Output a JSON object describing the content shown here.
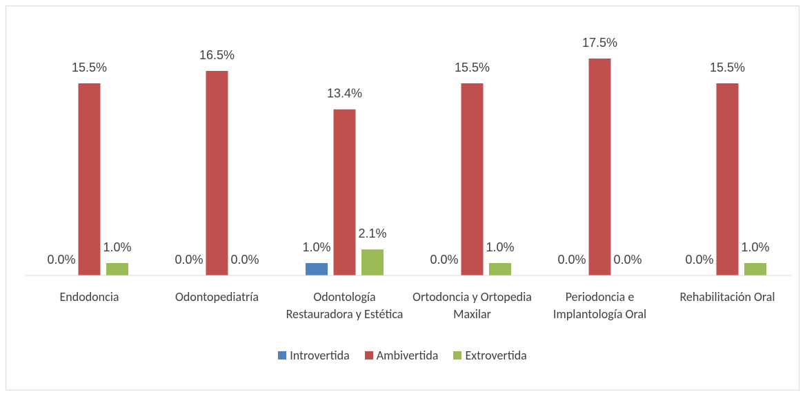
{
  "chart_data": {
    "type": "bar",
    "categories": [
      "Endodoncia",
      "Odontopediatría",
      "Odontología Restauradora y Estética",
      "Ortodoncia y Ortopedia Maxilar",
      "Periodoncia e Implantología Oral",
      "Rehabilitación Oral"
    ],
    "series": [
      {
        "name": "Introvertida",
        "color": "#4f81bd",
        "values": [
          0.0,
          0.0,
          1.0,
          0.0,
          0.0,
          0.0
        ],
        "value_labels": [
          "0.0%",
          "0.0%",
          "1.0%",
          "0.0%",
          "0.0%",
          "0.0%"
        ]
      },
      {
        "name": "Ambivertida",
        "color": "#c0504d",
        "values": [
          15.5,
          16.5,
          13.4,
          15.5,
          17.5,
          15.5
        ],
        "value_labels": [
          "15.5%",
          "16.5%",
          "13.4%",
          "15.5%",
          "17.5%",
          "15.5%"
        ]
      },
      {
        "name": "Extrovertida",
        "color": "#9bbb59",
        "values": [
          1.0,
          0.0,
          2.1,
          1.0,
          0.0,
          1.0
        ],
        "value_labels": [
          "1.0%",
          "0.0%",
          "2.1%",
          "1.0%",
          "0.0%",
          "1.0%"
        ]
      }
    ],
    "ylim": [
      0,
      20
    ],
    "legend": "bottom"
  }
}
